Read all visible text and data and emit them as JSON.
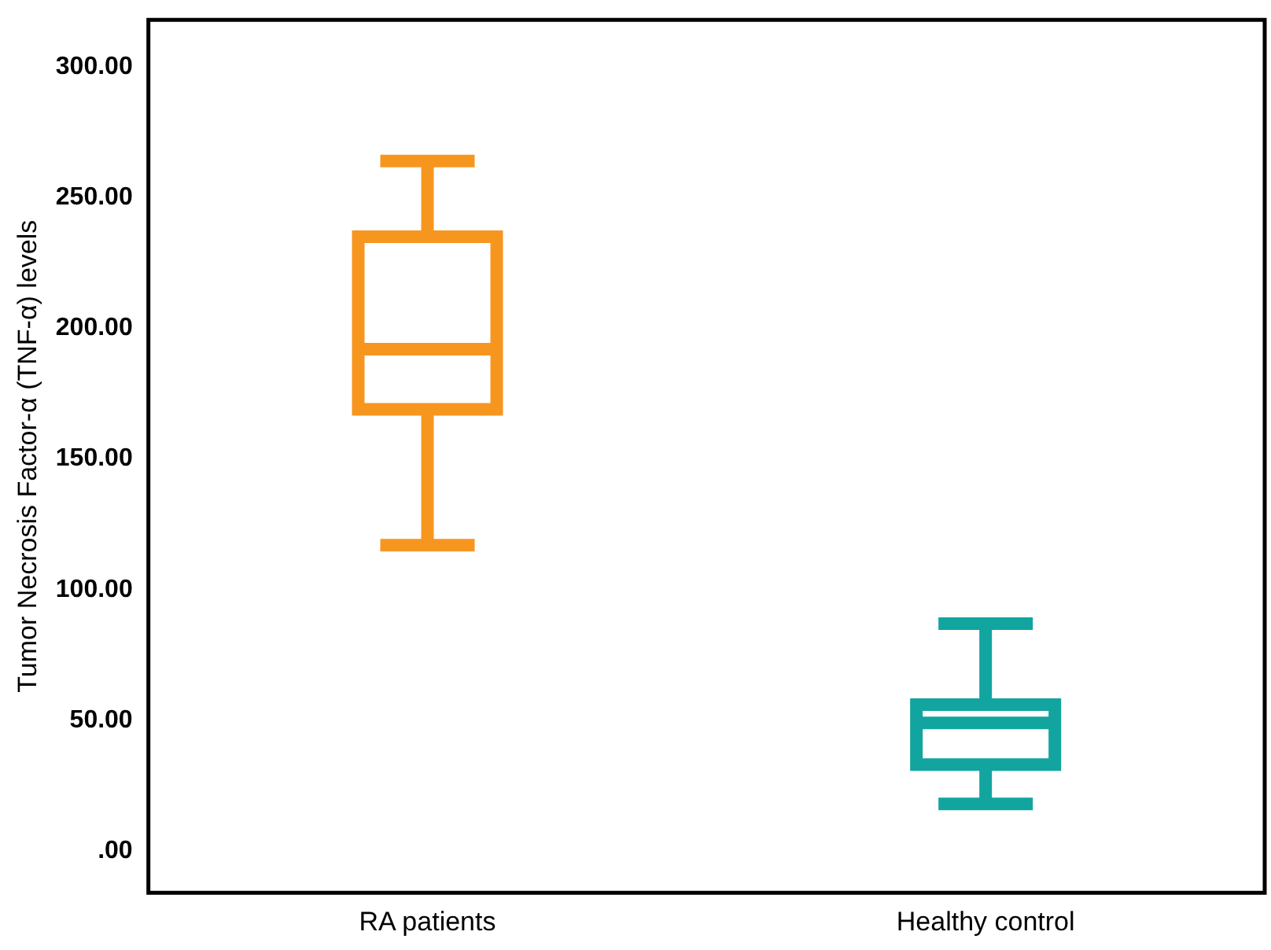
{
  "chart_data": {
    "type": "box",
    "ylabel": "Tumor Necrosis Factor-α (TNF-α) levels",
    "categories": [
      "RA patients",
      "Healthy control"
    ],
    "colors": [
      "#f7961f",
      "#12a5a0"
    ],
    "boxes": [
      {
        "low": 117,
        "q1": 169,
        "median": 192,
        "q3": 235,
        "high": 264
      },
      {
        "low": 18,
        "q1": 33,
        "median": 49,
        "q3": 56,
        "high": 87
      }
    ],
    "ylim": [
      -16,
      318
    ],
    "yticks": [
      {
        "value": 0,
        "label": ".00"
      },
      {
        "value": 50,
        "label": "50.00"
      },
      {
        "value": 100,
        "label": "100.00"
      },
      {
        "value": 150,
        "label": "150.00"
      },
      {
        "value": 200,
        "label": "200.00"
      },
      {
        "value": 250,
        "label": "250.00"
      },
      {
        "value": 300,
        "label": "300.00"
      }
    ],
    "grid": false,
    "legend": false
  }
}
